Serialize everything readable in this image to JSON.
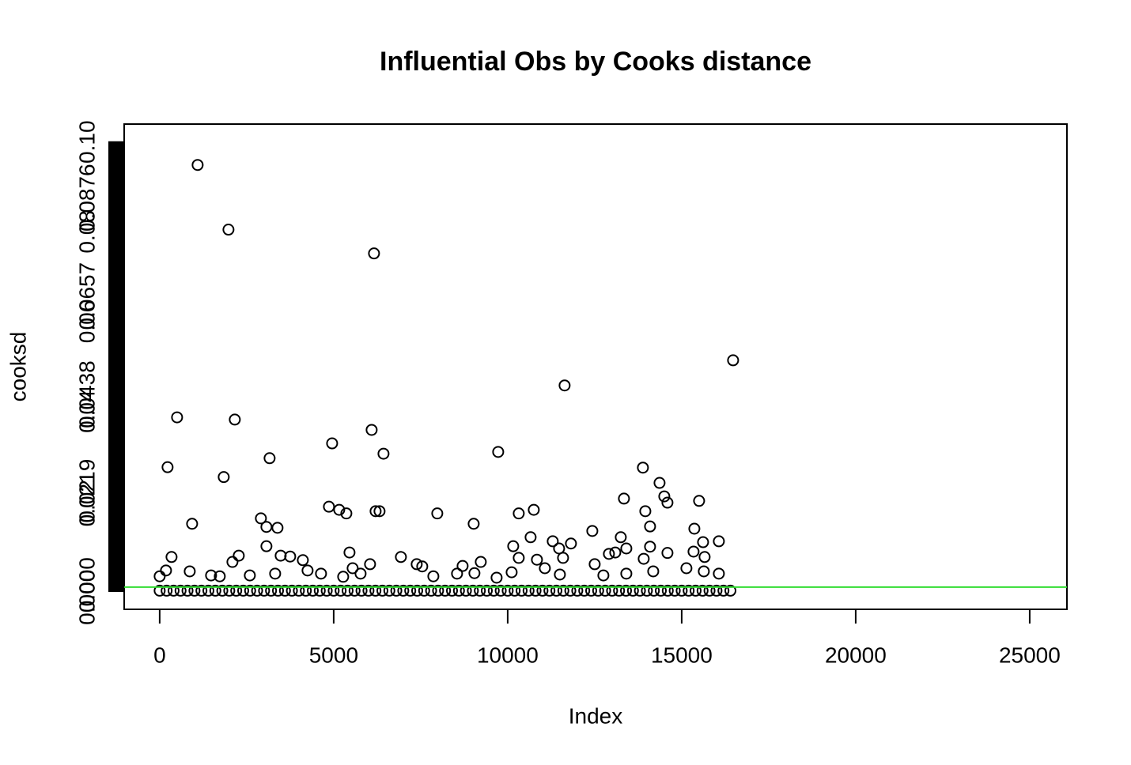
{
  "chart_data": {
    "type": "scatter",
    "title": "Influential Obs by Cooks distance",
    "xlabel": "Index",
    "ylabel": "cooksd",
    "xlim": [
      -1020,
      26070
    ],
    "ylim": [
      -0.00405,
      0.104
    ],
    "xticks": [
      0,
      5000,
      10000,
      15000,
      20000,
      25000
    ],
    "yticks": [
      {
        "value": 0,
        "label": "0.0000"
      },
      0.0219,
      0.0438,
      0.0657,
      0.0876,
      {
        "value": 0,
        "label": "0.00"
      },
      0.02,
      0.04,
      0.06,
      0.08,
      {
        "value": 0.1,
        "label": "0.10"
      }
    ],
    "color": "#000000",
    "hline": {
      "value": 0.0009,
      "color": "#33dd33"
    },
    "x": [
      1091,
      1977,
      6159,
      16477,
      11636,
      500,
      2159,
      6091,
      4955,
      9727,
      6432,
      3159,
      227,
      13886,
      1841,
      14364,
      14500,
      13341,
      14591,
      15500,
      4864,
      5159,
      5364,
      6205,
      6318,
      7977,
      10318,
      10750,
      13955,
      2909,
      9023,
      932,
      3068,
      3386,
      14091,
      12432,
      15364,
      10659,
      13250,
      11295,
      15614,
      16068,
      11818,
      10159,
      3068,
      11477,
      14091,
      13409,
      5455,
      15341,
      14591,
      341,
      2273,
      3477,
      3750,
      6932,
      10318,
      10841,
      11591,
      12909,
      13091,
      13909,
      15659,
      2091,
      4114,
      9227,
      6045,
      7386,
      7545,
      8705,
      12500,
      11068,
      15136,
      5545,
      182,
      864,
      4250,
      4636,
      8545,
      9045,
      10114,
      11500,
      12750,
      13409,
      14182,
      15636,
      16068,
      0,
      2591,
      3318,
      5273,
      5773,
      7864,
      9682,
      1477,
      1727,
      0,
      200,
      400,
      600,
      800,
      1000,
      1200,
      1400,
      1600,
      1800,
      2000,
      2200,
      2400,
      2600,
      2800,
      3000,
      3200,
      3400,
      3600,
      3800,
      4000,
      4200,
      4400,
      4600,
      4800,
      5000,
      5200,
      5400,
      5600,
      5800,
      6000,
      6200,
      6400,
      6600,
      6800,
      7000,
      7200,
      7400,
      7600,
      7800,
      8000,
      8200,
      8400,
      8600,
      8800,
      9000,
      9200,
      9400,
      9600,
      9800,
      10000,
      10200,
      10400,
      10600,
      10800,
      11000,
      11200,
      11400,
      11600,
      11800,
      12000,
      12200,
      12400,
      12600,
      12800,
      13000,
      13200,
      13400,
      13600,
      13800,
      14000,
      14200,
      14400,
      14600,
      14800,
      15000,
      15200,
      15400,
      15600,
      15800,
      16000,
      16200,
      16400
    ],
    "values": [
      0.0949,
      0.0805,
      0.0752,
      0.0514,
      0.0458,
      0.0387,
      0.0382,
      0.0359,
      0.0329,
      0.031,
      0.0306,
      0.0296,
      0.0276,
      0.0275,
      0.0254,
      0.0241,
      0.0211,
      0.0206,
      0.0197,
      0.0201,
      0.0188,
      0.0181,
      0.0173,
      0.0178,
      0.0178,
      0.0173,
      0.0173,
      0.0181,
      0.0178,
      0.0162,
      0.015,
      0.015,
      0.0143,
      0.0141,
      0.0144,
      0.0134,
      0.0139,
      0.012,
      0.012,
      0.0111,
      0.0109,
      0.0111,
      0.0106,
      0.01,
      0.01,
      0.0095,
      0.0099,
      0.0095,
      0.0086,
      0.0088,
      0.0085,
      0.0076,
      0.0079,
      0.0079,
      0.0077,
      0.0076,
      0.0074,
      0.007,
      0.0074,
      0.0083,
      0.0086,
      0.0072,
      0.0076,
      0.0065,
      0.0069,
      0.0065,
      0.006,
      0.006,
      0.0055,
      0.0056,
      0.006,
      0.0051,
      0.0051,
      0.0051,
      0.0046,
      0.0044,
      0.0046,
      0.0039,
      0.0039,
      0.004,
      0.0042,
      0.0037,
      0.0035,
      0.0039,
      0.0044,
      0.0044,
      0.0039,
      0.0033,
      0.0035,
      0.0039,
      0.0032,
      0.0039,
      0.0033,
      0.003,
      0.0035,
      0.0033,
      0.0001,
      0.0001,
      0.0001,
      0.0001,
      0.0001,
      0.0001,
      0.0001,
      0.0001,
      0.0001,
      0.0001,
      0.0001,
      0.0001,
      0.0001,
      0.0001,
      0.0001,
      0.0001,
      0.0001,
      0.0001,
      0.0001,
      0.0001,
      0.0001,
      0.0001,
      0.0001,
      0.0001,
      0.0001,
      0.0001,
      0.0001,
      0.0001,
      0.0001,
      0.0001,
      0.0001,
      0.0001,
      0.0001,
      0.0001,
      0.0001,
      0.0001,
      0.0001,
      0.0001,
      0.0001,
      0.0001,
      0.0001,
      0.0001,
      0.0001,
      0.0001,
      0.0001,
      0.0001,
      0.0001,
      0.0001,
      0.0001,
      0.0001,
      0.0001,
      0.0001,
      0.0001,
      0.0001,
      0.0001,
      0.0001,
      0.0001,
      0.0001,
      0.0001,
      0.0001,
      0.0001,
      0.0001,
      0.0001,
      0.0001,
      0.0001,
      0.0001,
      0.0001,
      0.0001,
      0.0001,
      0.0001,
      0.0001,
      0.0001,
      0.0001,
      0.0001,
      0.0001,
      0.0001,
      0.0001,
      0.0001,
      0.0001,
      0.0001,
      0.0001,
      0.0001,
      0.0001
    ]
  }
}
